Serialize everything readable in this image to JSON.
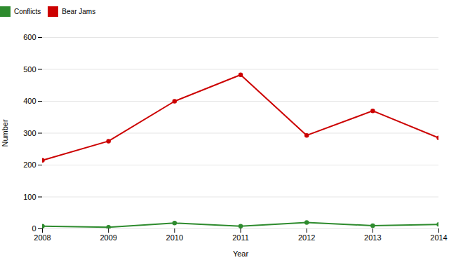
{
  "chart_data": {
    "type": "line",
    "x": [
      2008,
      2009,
      2010,
      2011,
      2012,
      2013,
      2014
    ],
    "series": [
      {
        "name": "Conflicts",
        "color": "#2e8b2e",
        "values": [
          8,
          5,
          18,
          8,
          20,
          10,
          14
        ],
        "marker": "circle"
      },
      {
        "name": "Bear Jams",
        "color": "#cc0000",
        "values": [
          215,
          275,
          400,
          483,
          293,
          370,
          285
        ],
        "marker": "circle"
      }
    ],
    "xlabel": "Year",
    "ylabel": "Number",
    "xlim": [
      2008,
      2014
    ],
    "xticks": [
      2008,
      2009,
      2010,
      2011,
      2012,
      2013,
      2014
    ],
    "ylim": [
      0,
      600
    ],
    "yticks": [
      0,
      100,
      200,
      300,
      400,
      500,
      600
    ],
    "grid": true,
    "legend": "top"
  }
}
